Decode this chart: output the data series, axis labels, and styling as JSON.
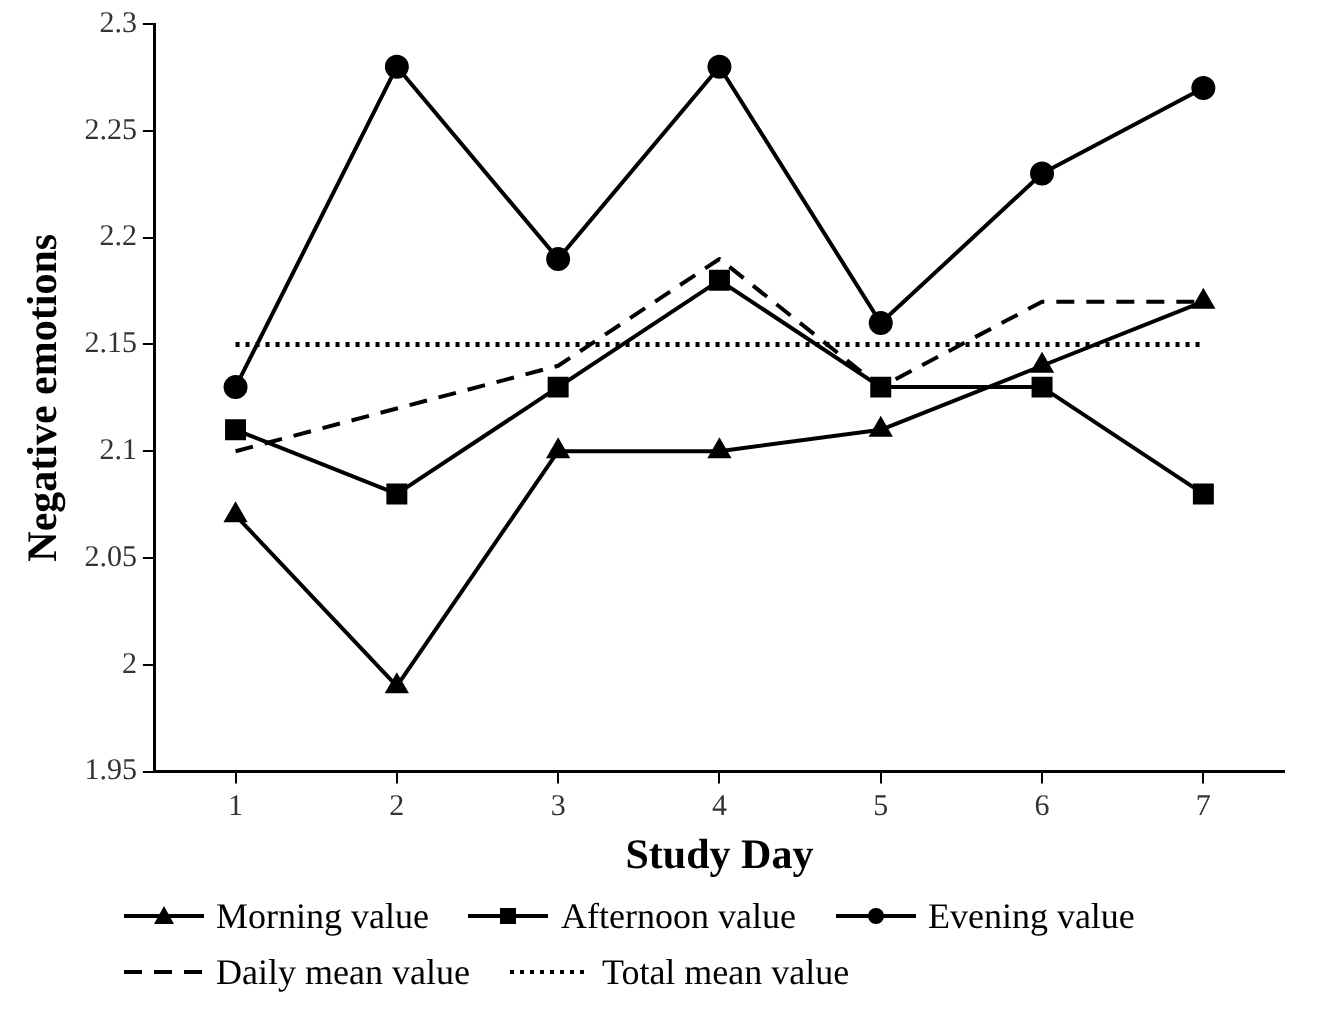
{
  "chart_data": {
    "type": "line",
    "xlabel": "Study Day",
    "ylabel": "Negative emotions",
    "categories": [
      "1",
      "2",
      "3",
      "4",
      "5",
      "6",
      "7"
    ],
    "series": [
      {
        "name": "Morning value",
        "color": "#000000",
        "marker": "triangle",
        "line_style": "solid",
        "values": [
          2.07,
          1.99,
          2.1,
          2.1,
          2.11,
          2.14,
          2.17
        ]
      },
      {
        "name": "Afternoon value",
        "color": "#000000",
        "marker": "square",
        "line_style": "solid",
        "values": [
          2.11,
          2.08,
          2.13,
          2.18,
          2.13,
          2.13,
          2.08
        ]
      },
      {
        "name": "Evening value",
        "color": "#000000",
        "marker": "circle",
        "line_style": "solid",
        "values": [
          2.13,
          2.28,
          2.19,
          2.28,
          2.16,
          2.23,
          2.27
        ]
      },
      {
        "name": "Daily mean value",
        "color": "#000000",
        "marker": "none",
        "line_style": "dashed",
        "values": [
          2.1,
          2.12,
          2.14,
          2.19,
          2.13,
          2.17,
          2.17
        ]
      },
      {
        "name": "Total mean value",
        "color": "#000000",
        "marker": "none",
        "line_style": "dotted",
        "values": [
          2.15,
          2.15,
          2.15,
          2.15,
          2.15,
          2.15,
          2.15
        ]
      }
    ],
    "ylim": [
      1.95,
      2.3
    ],
    "yticks": [
      1.95,
      2,
      2.05,
      2.1,
      2.15,
      2.2,
      2.25,
      2.3
    ],
    "grid": false,
    "legend": "bottom"
  }
}
